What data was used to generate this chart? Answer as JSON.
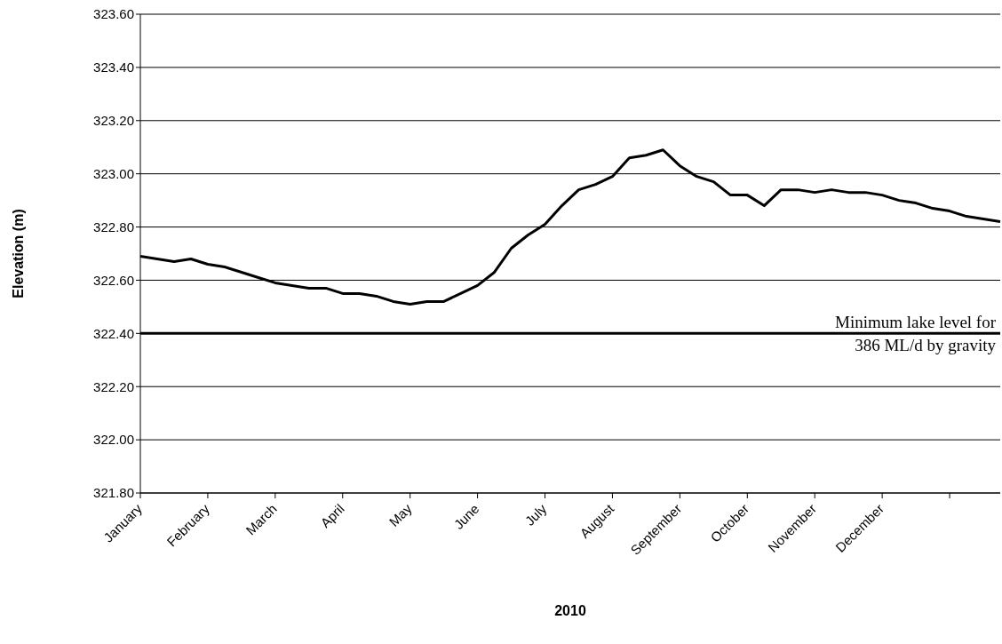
{
  "chart_data": {
    "type": "line",
    "xlabel": "2010",
    "ylabel": "Elevation (m)",
    "categories": [
      "January",
      null,
      null,
      null,
      "February",
      null,
      null,
      null,
      "March",
      null,
      null,
      null,
      "April",
      null,
      null,
      null,
      "May",
      null,
      null,
      null,
      "June",
      null,
      null,
      null,
      "July",
      null,
      null,
      null,
      "August",
      null,
      null,
      null,
      "September",
      null,
      null,
      null,
      "October",
      null,
      null,
      null,
      "November",
      null,
      null,
      null,
      "December",
      null,
      null,
      null,
      null,
      null,
      null,
      null
    ],
    "series": [
      {
        "color": "#000000",
        "values": [
          322.69,
          322.68,
          322.67,
          322.68,
          322.66,
          322.65,
          322.63,
          322.61,
          322.59,
          322.58,
          322.57,
          322.57,
          322.55,
          322.55,
          322.54,
          322.52,
          322.51,
          322.52,
          322.52,
          322.55,
          322.58,
          322.63,
          322.72,
          322.77,
          322.81,
          322.88,
          322.94,
          322.96,
          322.99,
          323.06,
          323.07,
          323.09,
          323.03,
          322.99,
          322.97,
          322.92,
          322.92,
          322.88,
          322.94,
          322.94,
          322.93,
          322.94,
          322.93,
          322.93,
          322.92,
          322.9,
          322.89,
          322.87,
          322.86,
          322.84,
          322.83,
          322.82
        ]
      }
    ],
    "ylim": [
      321.8,
      323.6
    ],
    "yticks": [
      {
        "value": 321.8,
        "label": "321.80"
      },
      {
        "value": 322,
        "label": "322.00"
      },
      {
        "value": 322.2,
        "label": "322.20"
      },
      {
        "value": 322.4,
        "label": "322.40"
      },
      {
        "value": 322.6,
        "label": "322.60"
      },
      {
        "value": 322.8,
        "label": "322.80"
      },
      {
        "value": 323,
        "label": "323.00"
      },
      {
        "value": 323.2,
        "label": "323.20"
      },
      {
        "value": 323.4,
        "label": "323.40"
      },
      {
        "value": 323.6,
        "label": "323.60"
      }
    ],
    "grid": "y",
    "marker": "none",
    "line_style": "solid",
    "ref_lines": [
      {
        "axis": "y",
        "value": 322.4,
        "label": "Minimum lake level for\n386 ML/d by gravity",
        "color": "#000000"
      }
    ]
  }
}
